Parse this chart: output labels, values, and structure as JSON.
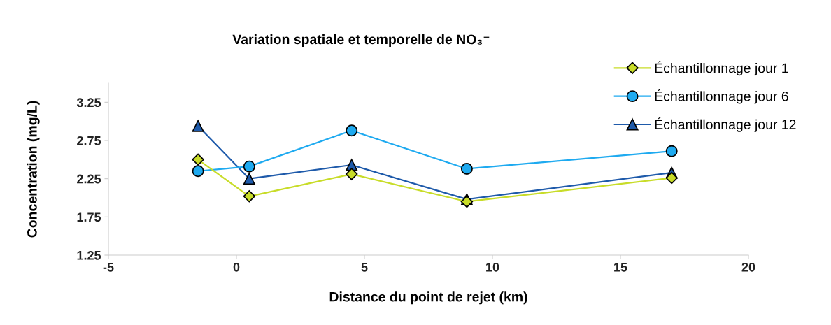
{
  "chart_data": {
    "type": "line",
    "title": "Variation spatiale et temporelle de NO₃⁻",
    "xlabel": "Distance du point de rejet (km)",
    "ylabel": "Concentration (mg/L)",
    "x": [
      -1.5,
      0.5,
      4.5,
      9,
      17
    ],
    "series": [
      {
        "name": "Échantillonnage jour 1",
        "color": "#c8dc28",
        "marker": "diamond",
        "values": [
          2.5,
          2.02,
          2.31,
          1.95,
          2.26
        ]
      },
      {
        "name": "Échantillonnage jour 6",
        "color": "#1eaaf0",
        "marker": "circle",
        "values": [
          2.35,
          2.41,
          2.88,
          2.38,
          2.61
        ]
      },
      {
        "name": "Échantillonnage jour 12",
        "color": "#1e5aaa",
        "marker": "triangle",
        "values": [
          2.94,
          2.25,
          2.43,
          1.98,
          2.33
        ]
      }
    ],
    "xlim": [
      -5,
      20
    ],
    "xticks": [
      -5,
      0,
      5,
      10,
      15,
      20
    ],
    "ylim": [
      1.25,
      3.5
    ],
    "yticks": [
      1.25,
      1.75,
      2.25,
      2.75,
      3.25
    ],
    "grid": false,
    "legend": "top right",
    "line_style": "solid"
  }
}
